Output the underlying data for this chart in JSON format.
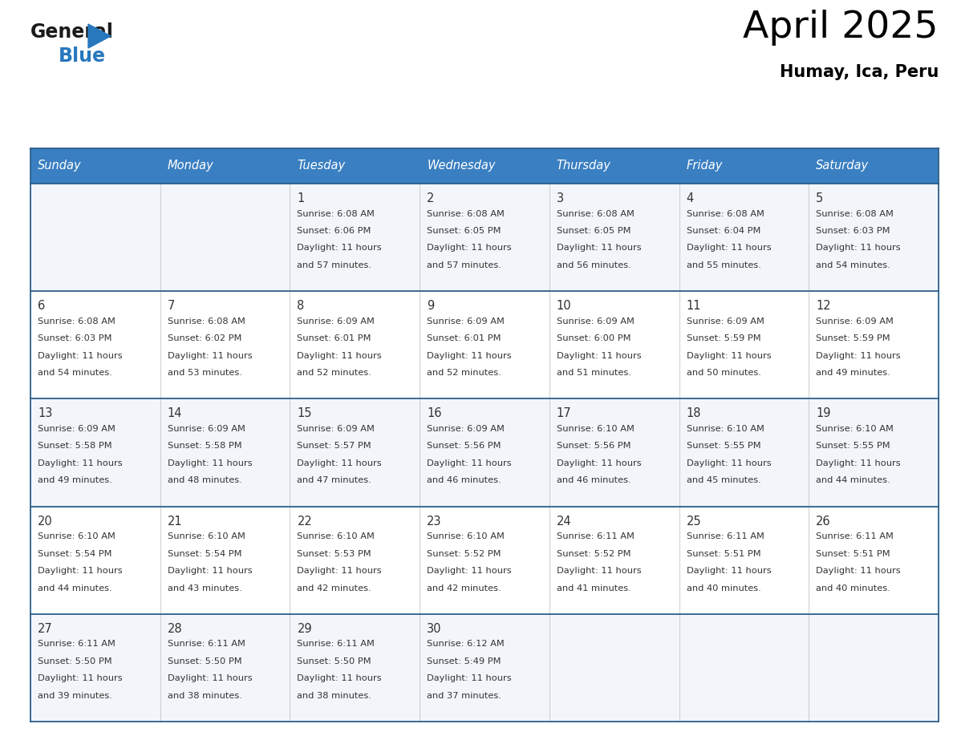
{
  "title": "April 2025",
  "subtitle": "Humay, Ica, Peru",
  "header_bg_color": "#3a7fc1",
  "header_text_color": "#ffffff",
  "cell_bg_row0": "#f2f6fa",
  "cell_bg_row1": "#ffffff",
  "grid_line_color": "#2c5f8a",
  "text_color": "#333333",
  "days_of_week": [
    "Sunday",
    "Monday",
    "Tuesday",
    "Wednesday",
    "Thursday",
    "Friday",
    "Saturday"
  ],
  "calendar_data": [
    [
      {
        "day": "",
        "sunrise": "",
        "sunset": "",
        "daylight_h": "",
        "daylight_m": ""
      },
      {
        "day": "",
        "sunrise": "",
        "sunset": "",
        "daylight_h": "",
        "daylight_m": ""
      },
      {
        "day": "1",
        "sunrise": "6:08 AM",
        "sunset": "6:06 PM",
        "daylight_h": "11 hours",
        "daylight_m": "and 57 minutes."
      },
      {
        "day": "2",
        "sunrise": "6:08 AM",
        "sunset": "6:05 PM",
        "daylight_h": "11 hours",
        "daylight_m": "and 57 minutes."
      },
      {
        "day": "3",
        "sunrise": "6:08 AM",
        "sunset": "6:05 PM",
        "daylight_h": "11 hours",
        "daylight_m": "and 56 minutes."
      },
      {
        "day": "4",
        "sunrise": "6:08 AM",
        "sunset": "6:04 PM",
        "daylight_h": "11 hours",
        "daylight_m": "and 55 minutes."
      },
      {
        "day": "5",
        "sunrise": "6:08 AM",
        "sunset": "6:03 PM",
        "daylight_h": "11 hours",
        "daylight_m": "and 54 minutes."
      }
    ],
    [
      {
        "day": "6",
        "sunrise": "6:08 AM",
        "sunset": "6:03 PM",
        "daylight_h": "11 hours",
        "daylight_m": "and 54 minutes."
      },
      {
        "day": "7",
        "sunrise": "6:08 AM",
        "sunset": "6:02 PM",
        "daylight_h": "11 hours",
        "daylight_m": "and 53 minutes."
      },
      {
        "day": "8",
        "sunrise": "6:09 AM",
        "sunset": "6:01 PM",
        "daylight_h": "11 hours",
        "daylight_m": "and 52 minutes."
      },
      {
        "day": "9",
        "sunrise": "6:09 AM",
        "sunset": "6:01 PM",
        "daylight_h": "11 hours",
        "daylight_m": "and 52 minutes."
      },
      {
        "day": "10",
        "sunrise": "6:09 AM",
        "sunset": "6:00 PM",
        "daylight_h": "11 hours",
        "daylight_m": "and 51 minutes."
      },
      {
        "day": "11",
        "sunrise": "6:09 AM",
        "sunset": "5:59 PM",
        "daylight_h": "11 hours",
        "daylight_m": "and 50 minutes."
      },
      {
        "day": "12",
        "sunrise": "6:09 AM",
        "sunset": "5:59 PM",
        "daylight_h": "11 hours",
        "daylight_m": "and 49 minutes."
      }
    ],
    [
      {
        "day": "13",
        "sunrise": "6:09 AM",
        "sunset": "5:58 PM",
        "daylight_h": "11 hours",
        "daylight_m": "and 49 minutes."
      },
      {
        "day": "14",
        "sunrise": "6:09 AM",
        "sunset": "5:58 PM",
        "daylight_h": "11 hours",
        "daylight_m": "and 48 minutes."
      },
      {
        "day": "15",
        "sunrise": "6:09 AM",
        "sunset": "5:57 PM",
        "daylight_h": "11 hours",
        "daylight_m": "and 47 minutes."
      },
      {
        "day": "16",
        "sunrise": "6:09 AM",
        "sunset": "5:56 PM",
        "daylight_h": "11 hours",
        "daylight_m": "and 46 minutes."
      },
      {
        "day": "17",
        "sunrise": "6:10 AM",
        "sunset": "5:56 PM",
        "daylight_h": "11 hours",
        "daylight_m": "and 46 minutes."
      },
      {
        "day": "18",
        "sunrise": "6:10 AM",
        "sunset": "5:55 PM",
        "daylight_h": "11 hours",
        "daylight_m": "and 45 minutes."
      },
      {
        "day": "19",
        "sunrise": "6:10 AM",
        "sunset": "5:55 PM",
        "daylight_h": "11 hours",
        "daylight_m": "and 44 minutes."
      }
    ],
    [
      {
        "day": "20",
        "sunrise": "6:10 AM",
        "sunset": "5:54 PM",
        "daylight_h": "11 hours",
        "daylight_m": "and 44 minutes."
      },
      {
        "day": "21",
        "sunrise": "6:10 AM",
        "sunset": "5:54 PM",
        "daylight_h": "11 hours",
        "daylight_m": "and 43 minutes."
      },
      {
        "day": "22",
        "sunrise": "6:10 AM",
        "sunset": "5:53 PM",
        "daylight_h": "11 hours",
        "daylight_m": "and 42 minutes."
      },
      {
        "day": "23",
        "sunrise": "6:10 AM",
        "sunset": "5:52 PM",
        "daylight_h": "11 hours",
        "daylight_m": "and 42 minutes."
      },
      {
        "day": "24",
        "sunrise": "6:11 AM",
        "sunset": "5:52 PM",
        "daylight_h": "11 hours",
        "daylight_m": "and 41 minutes."
      },
      {
        "day": "25",
        "sunrise": "6:11 AM",
        "sunset": "5:51 PM",
        "daylight_h": "11 hours",
        "daylight_m": "and 40 minutes."
      },
      {
        "day": "26",
        "sunrise": "6:11 AM",
        "sunset": "5:51 PM",
        "daylight_h": "11 hours",
        "daylight_m": "and 40 minutes."
      }
    ],
    [
      {
        "day": "27",
        "sunrise": "6:11 AM",
        "sunset": "5:50 PM",
        "daylight_h": "11 hours",
        "daylight_m": "and 39 minutes."
      },
      {
        "day": "28",
        "sunrise": "6:11 AM",
        "sunset": "5:50 PM",
        "daylight_h": "11 hours",
        "daylight_m": "and 38 minutes."
      },
      {
        "day": "29",
        "sunrise": "6:11 AM",
        "sunset": "5:50 PM",
        "daylight_h": "11 hours",
        "daylight_m": "and 38 minutes."
      },
      {
        "day": "30",
        "sunrise": "6:12 AM",
        "sunset": "5:49 PM",
        "daylight_h": "11 hours",
        "daylight_m": "and 37 minutes."
      },
      {
        "day": "",
        "sunrise": "",
        "sunset": "",
        "daylight_h": "",
        "daylight_m": ""
      },
      {
        "day": "",
        "sunrise": "",
        "sunset": "",
        "daylight_h": "",
        "daylight_m": ""
      },
      {
        "day": "",
        "sunrise": "",
        "sunset": "",
        "daylight_h": "",
        "daylight_m": ""
      }
    ]
  ],
  "logo_general_color": "#1a1a1a",
  "logo_blue_color": "#2878be",
  "logo_triangle_color": "#2878be"
}
